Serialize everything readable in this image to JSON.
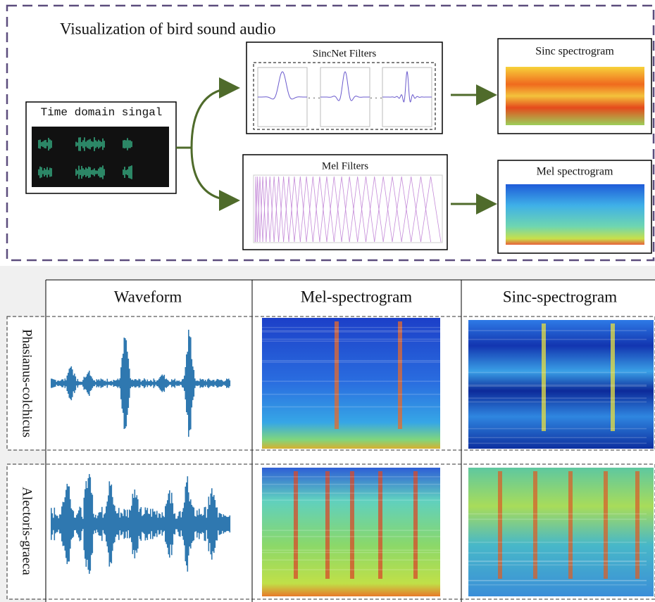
{
  "header": {
    "title": "Visualization of bird sound audio"
  },
  "pipeline": {
    "input": "Time domain singal",
    "branches": [
      {
        "filter": "SincNet Filters",
        "output": "Sinc spectrogram"
      },
      {
        "filter": "Mel Filters",
        "output": "Mel spectrogram"
      }
    ]
  },
  "table": {
    "columns": [
      "Waveform",
      "Mel-spectrogram",
      "Sinc-spectrogram"
    ],
    "rows": [
      "Phasianus-colchicus",
      "Alectoris-graeca"
    ]
  }
}
